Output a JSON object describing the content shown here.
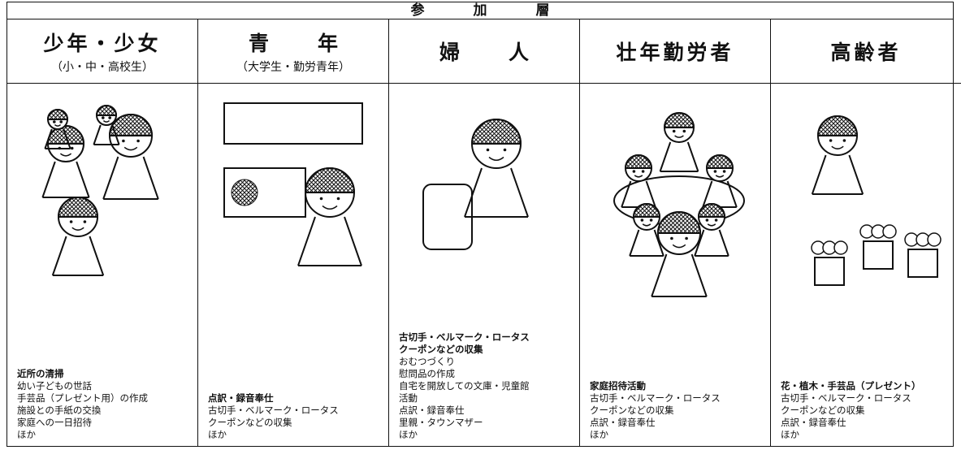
{
  "header": {
    "title": "参加層"
  },
  "columns": [
    {
      "title": "少年・少女",
      "subtitle": "（小・中・高校生）",
      "bold": [
        "近所の清掃"
      ],
      "items": [
        "幼い子どもの世話",
        "手芸品（プレゼント用）の作成",
        "施設との手紙の交換",
        "家庭への一日招待",
        "ほか"
      ]
    },
    {
      "title": "青年",
      "subtitle": "（大学生・勤労青年）",
      "bold": [
        "点訳・録音奉仕"
      ],
      "items": [
        "古切手・ベルマーク・ロータス",
        "クーポンなどの収集",
        "ほか"
      ]
    },
    {
      "title": "婦人",
      "bold": [
        "古切手・ベルマーク・ロータス",
        "クーポンなどの収集"
      ],
      "items": [
        "おむつづくり",
        "慰問品の作成",
        "自宅を開放しての文庫・児童館",
        "活動",
        "点訳・録音奉仕",
        "里親・タウンマザー",
        "ほか"
      ]
    },
    {
      "title": "壮年勤労者",
      "bold": [
        "家庭招待活動"
      ],
      "items": [
        "古切手・ベルマーク・ロータス",
        "クーポンなどの収集",
        "点訳・録音奉仕",
        "ほか"
      ]
    },
    {
      "title": "高齢者",
      "bold": [
        "花・植木・手芸品（プレゼント）"
      ],
      "items": [
        "古切手・ベルマーク・ロータス",
        "クーポンなどの収集",
        "点訳・録音奉仕",
        "ほか"
      ]
    }
  ]
}
